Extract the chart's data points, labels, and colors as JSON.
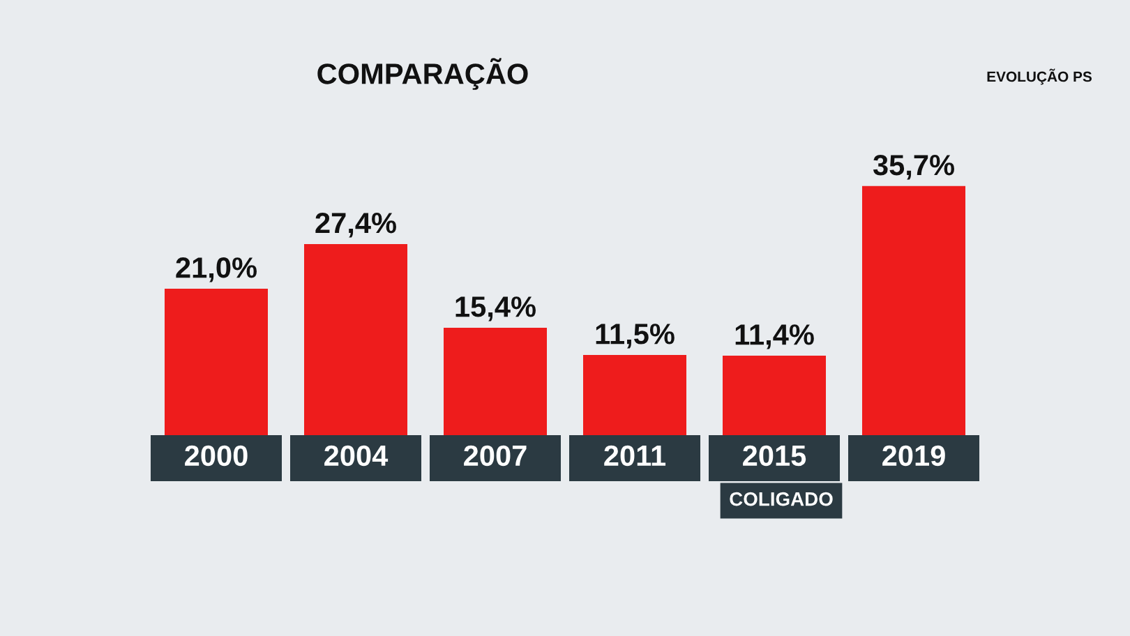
{
  "chart_data": {
    "type": "bar",
    "title": "COMPARAÇÃO",
    "subtitle": "EVOLUÇÃO PS",
    "categories": [
      "2000",
      "2004",
      "2007",
      "2011",
      "2015",
      "2019"
    ],
    "values": [
      21.0,
      27.4,
      15.4,
      11.5,
      11.4,
      35.7
    ],
    "value_labels": [
      "21,0%",
      "27,4%",
      "15,4%",
      "11,5%",
      "11,4%",
      "35,7%"
    ],
    "color": "#ee1c1c",
    "annotations": [
      "COLIGADO"
    ]
  }
}
